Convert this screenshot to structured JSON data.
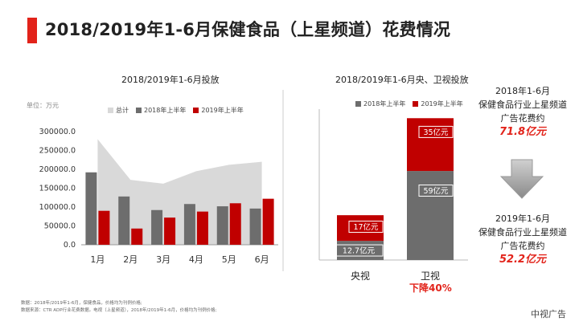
{
  "header": {
    "title": "2018/2019年1-6月保健食品（上星频道）花费情况"
  },
  "left_chart": {
    "title": "2018/2019年1-6月投放",
    "unit_label": "单位：万元"
  },
  "right_chart": {
    "title": "2018/2019年1-6月央、卫视投放",
    "decline_label": "下降40%"
  },
  "chart_data": [
    {
      "type": "bar",
      "title": "2018/2019年1-6月投放",
      "ylabel": "单位：万元",
      "categories": [
        "1月",
        "2月",
        "3月",
        "4月",
        "5月",
        "6月"
      ],
      "series": [
        {
          "name": "总计",
          "kind": "area",
          "values": [
            280000,
            172000,
            162000,
            195000,
            212000,
            220000
          ]
        },
        {
          "name": "2018年上半年",
          "kind": "bar",
          "values": [
            192000,
            128000,
            92000,
            108000,
            102000,
            96000
          ]
        },
        {
          "name": "2019年上半年",
          "kind": "bar",
          "values": [
            90000,
            43000,
            72000,
            88000,
            110000,
            122000
          ]
        }
      ],
      "yticks": [
        "0.0",
        "50000.0",
        "100000.0",
        "150000.0",
        "200000.0",
        "250000.0",
        "300000.0"
      ],
      "ylim": [
        0,
        300000
      ],
      "colors": {
        "总计": "#d9d9d9",
        "2018年上半年": "#6d6d6d",
        "2019年上半年": "#c00000"
      }
    },
    {
      "type": "bar",
      "stacked": true,
      "title": "2018/2019年1-6月央、卫视投放",
      "categories": [
        "央视",
        "卫视"
      ],
      "series": [
        {
          "name": "2018年上半年",
          "values": [
            12.7,
            59
          ],
          "labels": [
            "12.7亿元",
            "59亿元"
          ]
        },
        {
          "name": "2019年上半年",
          "values": [
            17,
            35
          ],
          "labels": [
            "17亿元",
            "35亿元"
          ]
        }
      ],
      "ylim": [
        0,
        100
      ],
      "colors": {
        "2018年上半年": "#6d6d6d",
        "2019年上半年": "#c00000"
      }
    }
  ],
  "summary": {
    "line1_2018": "2018年1-6月",
    "line2_2018": "保健食品行业上星频道",
    "line3_2018": "广告花费约",
    "value_2018": "71.8亿元",
    "line1_2019": "2019年1-6月",
    "line2_2019": "保健食品行业上星频道",
    "line3_2019": "广告花费约",
    "value_2019": "52.2亿元"
  },
  "notes": {
    "line1": "数据：2018年/2019年1-6月，保健食品，价格均为刊例价格;",
    "line2": "数据来源：CTR ADP行业花费数据。电视（上星频道），2018年/2019年1-6月，价格均为刊例价格;"
  },
  "brand": "中视广告"
}
